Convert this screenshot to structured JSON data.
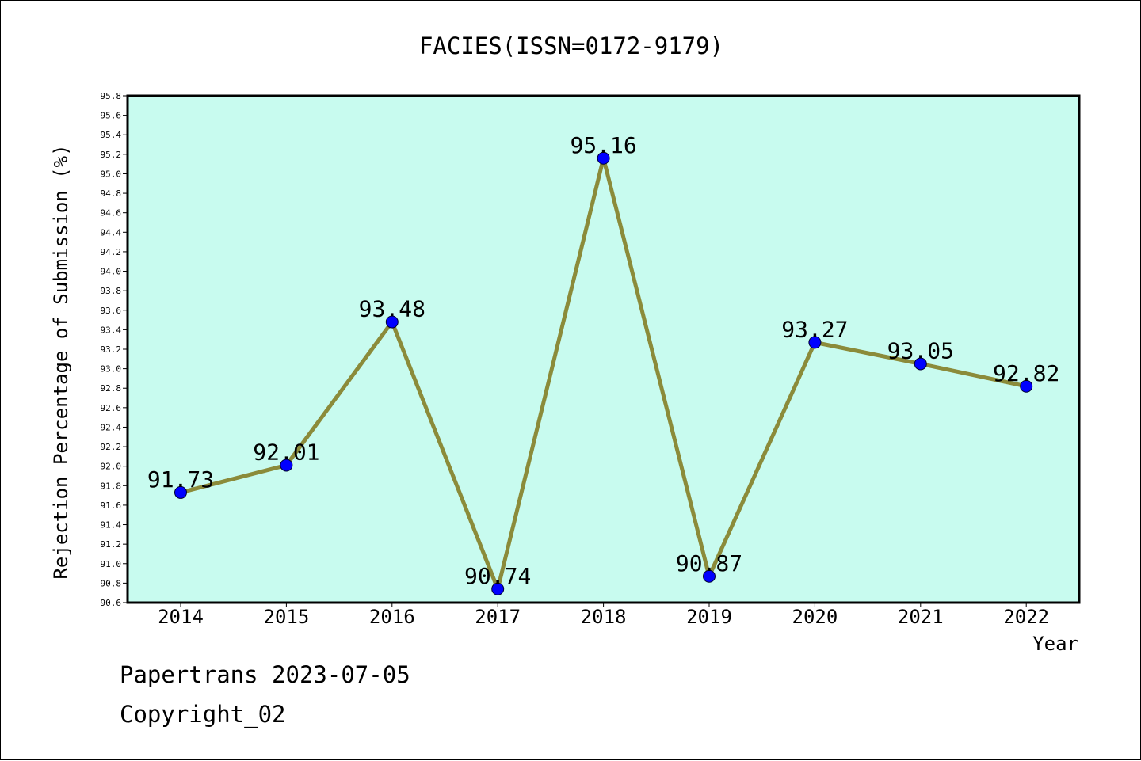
{
  "chart_data": {
    "type": "line",
    "title": "FACIES(ISSN=0172-9179)",
    "xlabel": "Year",
    "ylabel": "Rejection Percentage of Submission (%)",
    "categories": [
      "2014",
      "2015",
      "2016",
      "2017",
      "2018",
      "2019",
      "2020",
      "2021",
      "2022"
    ],
    "values": [
      91.73,
      92.01,
      93.48,
      90.74,
      95.16,
      90.87,
      93.27,
      93.05,
      92.82
    ],
    "data_labels": [
      "91.73",
      "92.01",
      "93.48",
      "90.74",
      "95.16",
      "90.87",
      "93.27",
      "93.05",
      "92.82"
    ],
    "ylim": [
      90.6,
      95.8
    ],
    "ytick_step": 0.2,
    "grid": false,
    "colors": {
      "plot_background": "#c8fbef",
      "line": "#8b8b3a",
      "marker": "#0000ff"
    }
  },
  "footer": {
    "line1": "Papertrans 2023-07-05",
    "line2": "Copyright_02"
  }
}
